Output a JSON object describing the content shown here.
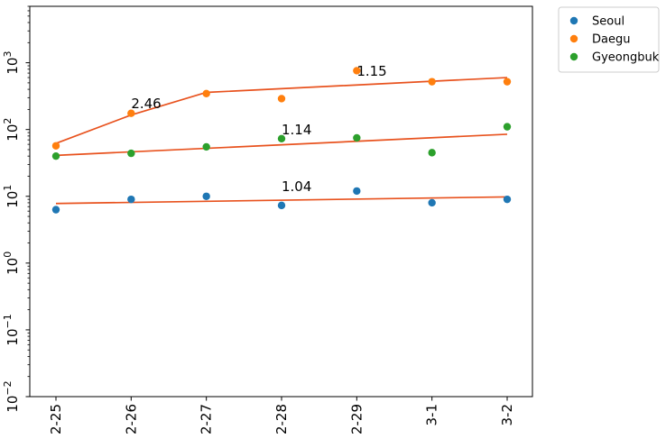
{
  "chart_data": {
    "type": "scatter",
    "y_scale": "log",
    "ylim": [
      0.01,
      7000
    ],
    "grid": false,
    "legend_position": "upper-right-outside",
    "categories": [
      "2-25",
      "2-26",
      "2-27",
      "2-28",
      "2-29",
      "3-1",
      "3-2"
    ],
    "y_ticks": [
      {
        "value": 0.01,
        "base": "10",
        "exp": "−2"
      },
      {
        "value": 0.1,
        "base": "10",
        "exp": "−1"
      },
      {
        "value": 1,
        "base": "10",
        "exp": "0"
      },
      {
        "value": 10,
        "base": "10",
        "exp": "1"
      },
      {
        "value": 100,
        "base": "10",
        "exp": "2"
      },
      {
        "value": 1000,
        "base": "10",
        "exp": "3"
      }
    ],
    "series": [
      {
        "name": "Seoul",
        "color": "#1f77b4",
        "values": [
          6.3,
          9.0,
          10.0,
          7.3,
          12.0,
          8.0,
          9.0
        ]
      },
      {
        "name": "Daegu",
        "color": "#ff7f0e",
        "values": [
          57,
          175,
          345,
          290,
          760,
          520,
          520
        ]
      },
      {
        "name": "Gyeongbuk",
        "color": "#2ca02c",
        "values": [
          40,
          44,
          55,
          73,
          75,
          45,
          110
        ]
      }
    ],
    "fit_lines": [
      {
        "color": "#e8521e",
        "points": [
          [
            "2-25",
            7.8
          ],
          [
            "3-2",
            9.8
          ]
        ]
      },
      {
        "color": "#e8521e",
        "points": [
          [
            "2-25",
            41
          ],
          [
            "3-2",
            85
          ]
        ]
      },
      {
        "color": "#e8521e",
        "points": [
          [
            "2-25",
            62
          ],
          [
            "2-26",
            165
          ],
          [
            "2-27",
            360
          ],
          [
            "3-2",
            600
          ]
        ]
      }
    ],
    "annotations": [
      {
        "text": "2.46",
        "x": "2-26",
        "y": 210
      },
      {
        "text": "1.15",
        "x": "2-29",
        "y": 640
      },
      {
        "text": "1.14",
        "x": "2-28",
        "y": 85
      },
      {
        "text": "1.04",
        "x": "2-28",
        "y": 12
      }
    ]
  }
}
